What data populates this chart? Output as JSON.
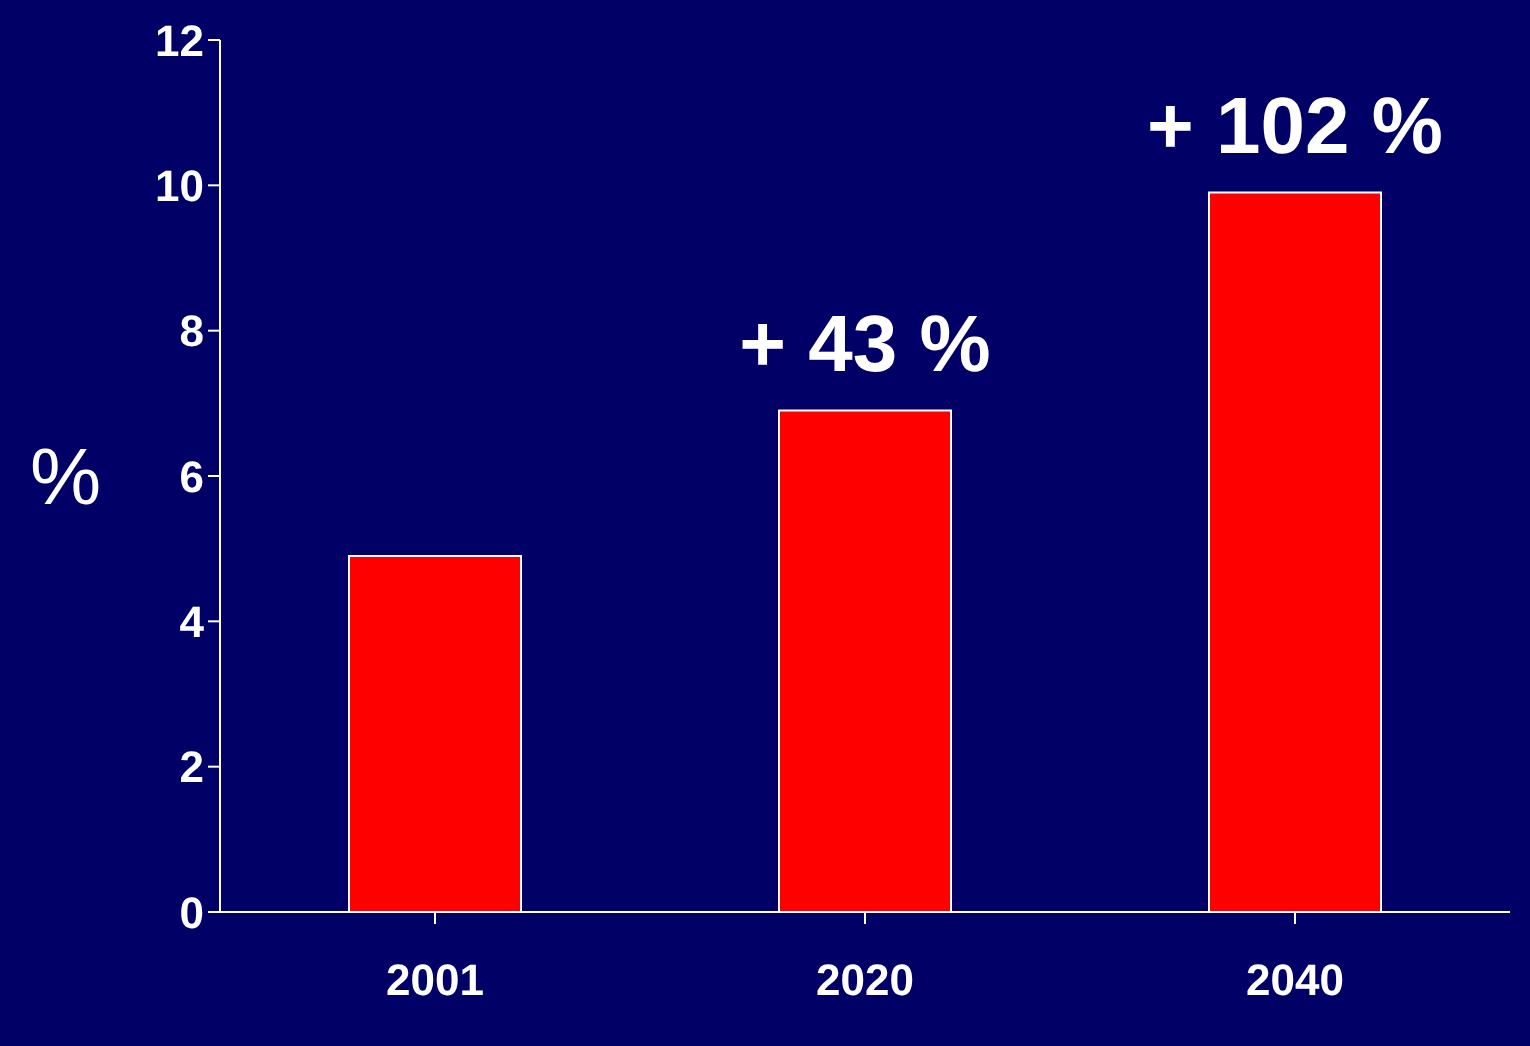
{
  "chart_data": {
    "type": "bar",
    "ylabel": "%",
    "categories": [
      "2001",
      "2020",
      "2040"
    ],
    "values": [
      4.9,
      6.9,
      9.9
    ],
    "annotations": [
      {
        "text": "+ 43 %",
        "x": "2020",
        "y": 6.9
      },
      {
        "text": "+ 102 %",
        "x": "2040",
        "y": 9.9
      }
    ],
    "color": "#ff0000",
    "ylim": [
      0,
      12
    ],
    "yticks": [
      0,
      2,
      4,
      6,
      8,
      10,
      12
    ],
    "grid": false,
    "legend": false
  }
}
